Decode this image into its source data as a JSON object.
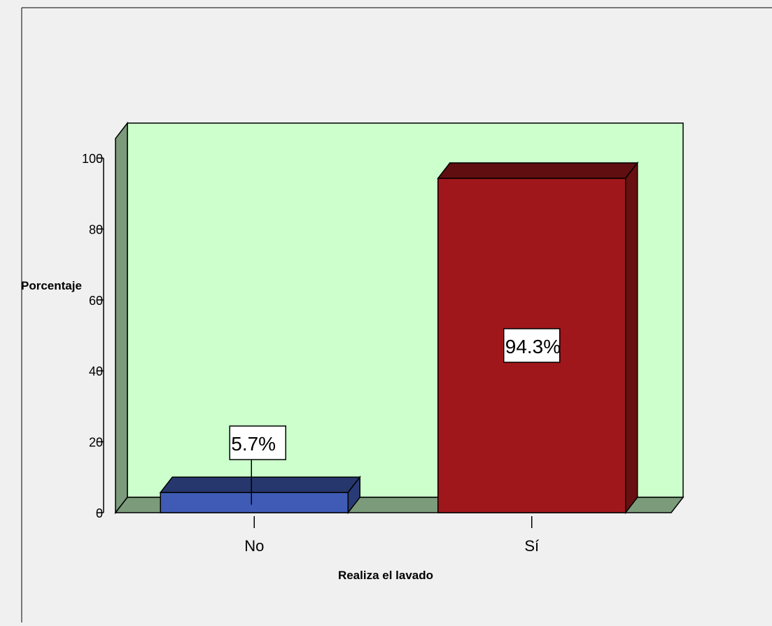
{
  "chart_data": {
    "type": "bar",
    "style": "3d",
    "categories": [
      "No",
      "Sí"
    ],
    "values": [
      5.7,
      94.3
    ],
    "data_labels": [
      "5.7%",
      "94.3%"
    ],
    "bar_colors": [
      "#3f5bb5",
      "#a0171b"
    ],
    "ylabel": "Porcentaje",
    "xlabel": "Realiza el lavado",
    "ylim": [
      0,
      100
    ],
    "yticks": [
      0,
      20,
      40,
      60,
      80,
      100
    ],
    "grid": false,
    "plot_background": "#ccffcc",
    "wall_color": "#7b9b7b"
  }
}
